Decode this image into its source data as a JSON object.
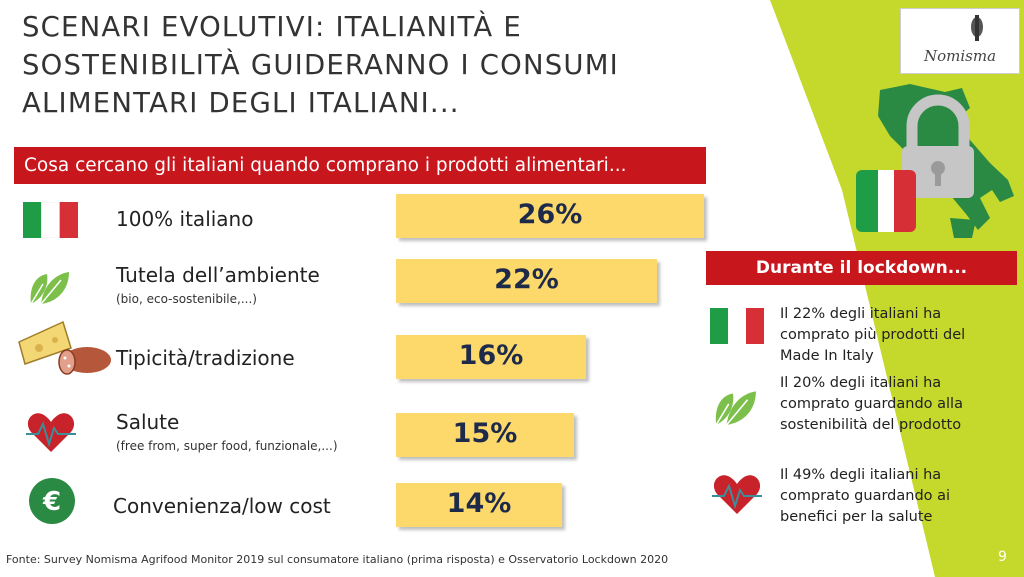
{
  "slide": {
    "title": "SCENARI EVOLUTIVI: ITALIANITÀ E SOSTENIBILITÀ GUIDERANNO I CONSUMI ALIMENTARI DEGLI ITALIANI...",
    "subtitle": "Cosa cercano gli italiani quando comprano i prodotti alimentari...",
    "logo_text": "Nomisma",
    "footer": "Fonte: Survey Nomisma Agrifood Monitor 2019 sul consumatore italiano (prima risposta) e Osservatorio Lockdown 2020",
    "page_number": "9",
    "colors": {
      "red": "#c8161d",
      "bar": "#fdd96c",
      "green": "#c5d92d",
      "navy": "#1e2a4a"
    }
  },
  "chart_data": {
    "type": "bar",
    "orientation": "horizontal",
    "categories": [
      "100% italiano",
      "Tutela dell’ambiente",
      "Tipicità/tradizione",
      "Salute",
      "Convenienza/low cost"
    ],
    "category_notes": [
      "",
      "(bio, eco-sostenibile,...)",
      "",
      "(free from, super food, funzionale,...)",
      ""
    ],
    "values": [
      26,
      22,
      16,
      15,
      14
    ],
    "value_labels": [
      "26%",
      "22%",
      "16%",
      "15%",
      "14%"
    ],
    "icons": [
      "italy-flag-icon",
      "leaf-icon",
      "cheese-salami-icon",
      "heart-pulse-icon",
      "euro-icon"
    ]
  },
  "lockdown": {
    "heading": "Durante il lockdown...",
    "items": [
      {
        "icon": "italy-flag-icon",
        "text_lines": [
          "Il 22% degli italiani ha",
          "comprato più prodotti del",
          "Made In Italy"
        ]
      },
      {
        "icon": "leaf-icon",
        "text_lines": [
          "Il 20% degli italiani ha",
          "comprato guardando alla",
          "sostenibilità del prodotto"
        ]
      },
      {
        "icon": "heart-pulse-icon",
        "text_lines": [
          "Il 49% degli italiani ha",
          "comprato guardando ai",
          "benefici per la salute"
        ]
      }
    ]
  }
}
